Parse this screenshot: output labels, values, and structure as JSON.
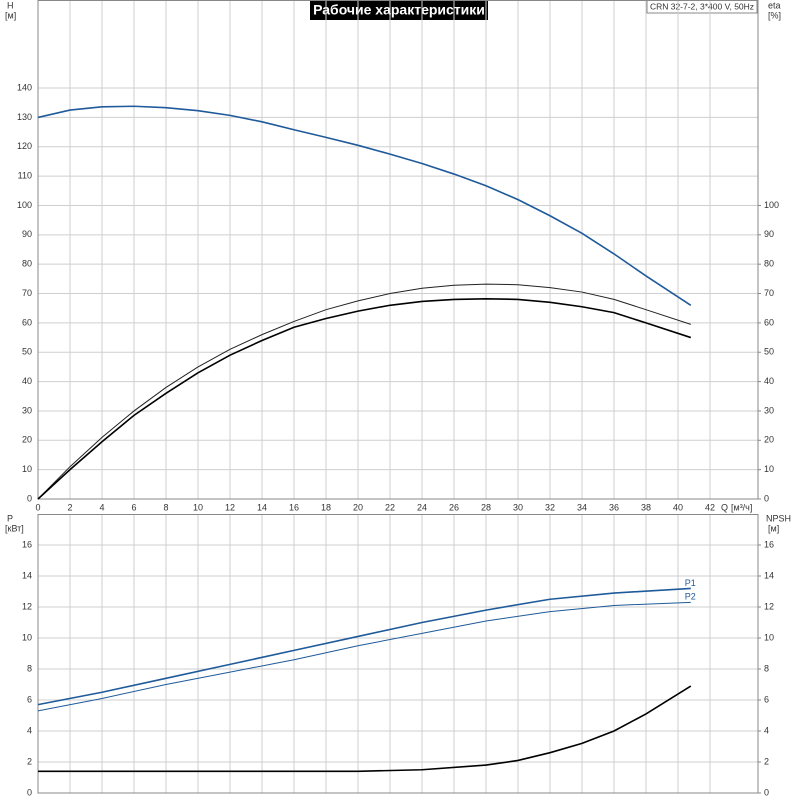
{
  "chart_data": [
    {
      "type": "line",
      "title": "Рабочие характеристики",
      "subtitle": "CRN 32-7-2, 3*400 V, 50Hz",
      "y_label": "H",
      "y_unit": "[м]",
      "y2_label": "eta",
      "y2_unit": "[%]",
      "x_label": "Q",
      "x_unit": "[м³/ч]",
      "xlim": [
        0,
        45
      ],
      "xticks": [
        0,
        2,
        4,
        6,
        8,
        10,
        12,
        14,
        16,
        18,
        20,
        22,
        24,
        26,
        28,
        30,
        32,
        34,
        36,
        38,
        40,
        42
      ],
      "ylim": [
        0,
        170
      ],
      "yticks": [
        0,
        10,
        20,
        30,
        40,
        50,
        60,
        70,
        80,
        90,
        100,
        110,
        120,
        130,
        140
      ],
      "y2lim": [
        0,
        170
      ],
      "y2ticks": [
        0,
        10,
        20,
        30,
        40,
        50,
        60,
        70,
        80,
        90,
        100
      ],
      "grid": true,
      "series": [
        {
          "color": "#1f5a9a",
          "width": 1.6,
          "x": [
            0,
            2,
            4,
            6,
            8,
            10,
            12,
            14,
            16,
            18,
            20,
            22,
            24,
            26,
            28,
            30,
            32,
            34,
            36,
            38,
            40.8
          ],
          "values": [
            130,
            132.5,
            133.6,
            133.8,
            133.3,
            132.3,
            130.7,
            128.5,
            125.8,
            123.2,
            120.5,
            117.5,
            114.3,
            110.7,
            106.7,
            102,
            96.5,
            90.5,
            83.5,
            76,
            66
          ]
        },
        {
          "axis": "y2",
          "color": "#222222",
          "width": 1,
          "x": [
            0,
            2,
            4,
            6,
            8,
            10,
            12,
            14,
            16,
            18,
            20,
            22,
            24,
            26,
            28,
            30,
            32,
            34,
            36,
            38,
            40.8
          ],
          "values": [
            0,
            11,
            21,
            30,
            38,
            45,
            51,
            56,
            60.5,
            64.5,
            67.5,
            70,
            71.8,
            72.8,
            73.2,
            73,
            72,
            70.5,
            68,
            64.5,
            59.5
          ]
        },
        {
          "axis": "y2",
          "color": "#000000",
          "width": 1.6,
          "x": [
            0,
            2,
            4,
            6,
            8,
            10,
            12,
            14,
            16,
            18,
            20,
            22,
            24,
            26,
            28,
            30,
            32,
            34,
            36,
            38,
            40.8
          ],
          "values": [
            0,
            10,
            19.5,
            28.5,
            36,
            43,
            49,
            54,
            58.5,
            61.5,
            64,
            66,
            67.3,
            68,
            68.2,
            68,
            67,
            65.5,
            63.5,
            60,
            55
          ]
        }
      ]
    },
    {
      "type": "line",
      "y_label": "P",
      "y_unit": "[кВт]",
      "y2_label": "NPSH",
      "y2_unit": "[м]",
      "xlim": [
        0,
        45
      ],
      "ylim": [
        0,
        18
      ],
      "yticks": [
        0,
        2,
        4,
        6,
        8,
        10,
        12,
        14,
        16
      ],
      "y2lim": [
        0,
        18
      ],
      "y2ticks": [
        0,
        2,
        4,
        6,
        8,
        10,
        12,
        14,
        16
      ],
      "grid": true,
      "series": [
        {
          "name": "P1",
          "color": "#1f5a9a",
          "width": 1.6,
          "x": [
            0,
            4,
            8,
            12,
            16,
            20,
            24,
            28,
            32,
            36,
            40.8
          ],
          "values": [
            5.7,
            6.5,
            7.4,
            8.3,
            9.2,
            10.1,
            11,
            11.8,
            12.5,
            12.9,
            13.2
          ]
        },
        {
          "name": "P2",
          "color": "#1f5a9a",
          "width": 1,
          "x": [
            0,
            4,
            8,
            12,
            16,
            20,
            24,
            28,
            32,
            36,
            40.8
          ],
          "values": [
            5.3,
            6.1,
            7,
            7.8,
            8.6,
            9.5,
            10.3,
            11.1,
            11.7,
            12.1,
            12.3
          ]
        },
        {
          "axis": "y2",
          "color": "#000000",
          "width": 1.6,
          "x": [
            0,
            4,
            8,
            12,
            16,
            20,
            24,
            28,
            30,
            32,
            34,
            36,
            38,
            40.8
          ],
          "values": [
            1.4,
            1.4,
            1.4,
            1.4,
            1.4,
            1.4,
            1.5,
            1.8,
            2.1,
            2.6,
            3.2,
            4,
            5.1,
            6.9
          ]
        }
      ]
    }
  ]
}
